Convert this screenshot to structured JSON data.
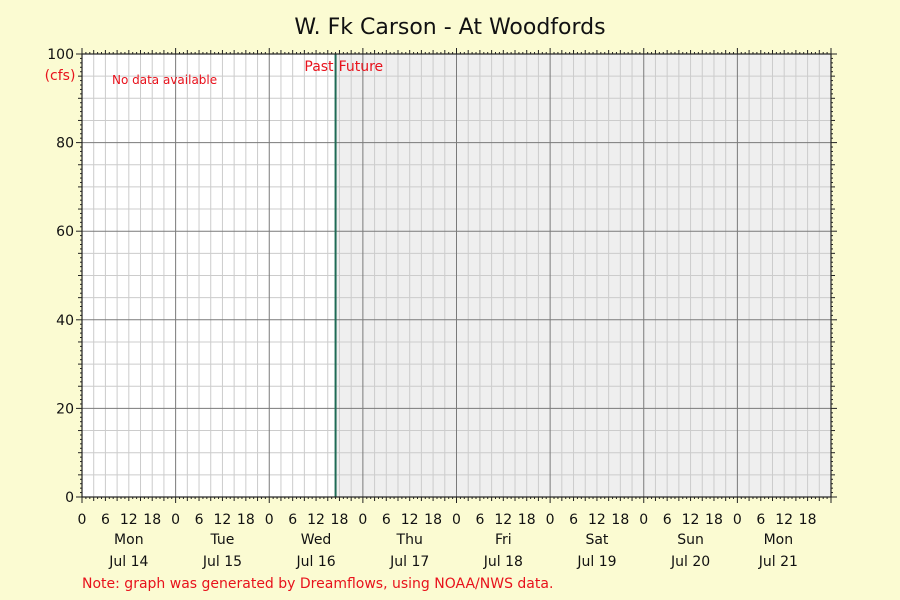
{
  "chart_data": {
    "type": "line",
    "title": "W. Fk Carson - At Woodfords",
    "ylabel": "(cfs)",
    "ylim": [
      0,
      100
    ],
    "yticks": [
      0,
      20,
      40,
      60,
      80,
      100
    ],
    "xlim_hours": [
      0,
      192
    ],
    "hour_labels": [
      "0",
      "6",
      "12",
      "18"
    ],
    "days": [
      {
        "weekday": "Mon",
        "date": "Jul 14"
      },
      {
        "weekday": "Tue",
        "date": "Jul 15"
      },
      {
        "weekday": "Wed",
        "date": "Jul 16"
      },
      {
        "weekday": "Thu",
        "date": "Jul 17"
      },
      {
        "weekday": "Fri",
        "date": "Jul 18"
      },
      {
        "weekday": "Sat",
        "date": "Jul 19"
      },
      {
        "weekday": "Sun",
        "date": "Jul 20"
      },
      {
        "weekday": "Mon",
        "date": "Jul 21"
      }
    ],
    "now_hour": 65,
    "past_label": "Past",
    "future_label": "Future",
    "no_data_text": "No data available",
    "series": [],
    "grid": true,
    "colors": {
      "background": "#fbfbd2",
      "plot_past": "#ffffff",
      "plot_future": "#efefef",
      "minor_grid": "#cccccc",
      "major_grid": "#7a7a7a",
      "now_line": "#1f6b55",
      "annotation": "#e8121c"
    }
  },
  "footer_note": "Note: graph was generated by Dreamflows, using NOAA/NWS data."
}
